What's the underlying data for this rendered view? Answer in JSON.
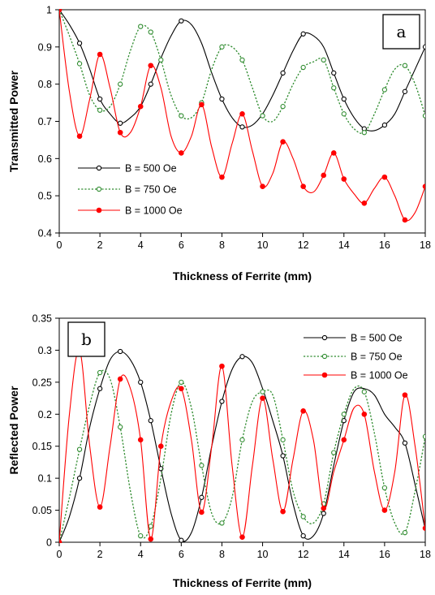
{
  "chart_data": [
    {
      "type": "line",
      "panel_label": "a",
      "xlabel": "Thickness of Ferrite (mm)",
      "ylabel": "Transmitted Power",
      "xlim": [
        0,
        18
      ],
      "ylim": [
        0.4,
        1.0
      ],
      "xticks": [
        "0",
        "2",
        "4",
        "6",
        "8",
        "10",
        "12",
        "14",
        "16",
        "18"
      ],
      "yticks": [
        "0.4",
        "0.5",
        "0.6",
        "0.7",
        "0.8",
        "0.9",
        "1"
      ],
      "legend_position": "lower-left",
      "grid": false,
      "series": [
        {
          "name": "B = 500 Oe",
          "color": "#000000",
          "line_style": "solid",
          "marker": "open-circle",
          "x": [
            0,
            0.5,
            1,
            1.5,
            2,
            2.5,
            3,
            3.5,
            4,
            4.5,
            5,
            5.5,
            6,
            6.5,
            7,
            7.5,
            8,
            8.5,
            9,
            9.5,
            10,
            10.5,
            11,
            11.5,
            12,
            12.5,
            13,
            13.5,
            14,
            14.5,
            15,
            15.5,
            16,
            16.5,
            17,
            17.5,
            18
          ],
          "y": [
            1.0,
            0.96,
            0.91,
            0.84,
            0.76,
            0.72,
            0.695,
            0.71,
            0.74,
            0.8,
            0.87,
            0.93,
            0.97,
            0.96,
            0.91,
            0.83,
            0.76,
            0.71,
            0.685,
            0.69,
            0.72,
            0.77,
            0.83,
            0.89,
            0.935,
            0.93,
            0.9,
            0.83,
            0.76,
            0.71,
            0.68,
            0.675,
            0.69,
            0.72,
            0.78,
            0.84,
            0.9
          ],
          "markers_x": [
            0,
            1,
            2,
            3,
            4.5,
            6,
            8,
            9,
            11,
            12,
            13.5,
            14,
            15,
            16,
            17,
            18
          ]
        },
        {
          "name": "B = 750 Oe",
          "color": "#2e8b2e",
          "line_style": "dotted",
          "marker": "open-circle",
          "x": [
            0,
            0.5,
            1,
            1.5,
            2,
            2.5,
            3,
            3.5,
            4,
            4.5,
            5,
            5.5,
            6,
            6.5,
            7,
            7.5,
            8,
            8.5,
            9,
            9.5,
            10,
            10.5,
            11,
            11.5,
            12,
            12.5,
            13,
            13.5,
            14,
            14.5,
            15,
            15.5,
            16,
            16.5,
            17,
            17.5,
            18
          ],
          "y": [
            1.0,
            0.93,
            0.855,
            0.77,
            0.73,
            0.74,
            0.8,
            0.89,
            0.955,
            0.94,
            0.865,
            0.77,
            0.715,
            0.71,
            0.75,
            0.84,
            0.9,
            0.9,
            0.865,
            0.79,
            0.715,
            0.7,
            0.74,
            0.8,
            0.845,
            0.86,
            0.865,
            0.79,
            0.72,
            0.68,
            0.67,
            0.72,
            0.785,
            0.84,
            0.85,
            0.8,
            0.715
          ],
          "markers_x": [
            0,
            1,
            2,
            3,
            4,
            4.5,
            5,
            6,
            7,
            8,
            9,
            10,
            11,
            12,
            13,
            13.5,
            14,
            15,
            16,
            17,
            18
          ]
        },
        {
          "name": "B = 1000 Oe",
          "color": "#ff0000",
          "line_style": "solid",
          "marker": "filled-circle",
          "x": [
            0,
            0.5,
            1,
            1.5,
            2,
            2.5,
            3,
            3.5,
            4,
            4.5,
            5,
            5.5,
            6,
            6.5,
            7,
            7.5,
            8,
            8.5,
            9,
            9.5,
            10,
            10.5,
            11,
            11.5,
            12,
            12.5,
            13,
            13.5,
            14,
            14.5,
            15,
            15.5,
            16,
            16.5,
            17,
            17.5,
            18
          ],
          "y": [
            1.0,
            0.78,
            0.66,
            0.76,
            0.88,
            0.79,
            0.67,
            0.67,
            0.74,
            0.85,
            0.79,
            0.66,
            0.615,
            0.66,
            0.745,
            0.63,
            0.55,
            0.64,
            0.72,
            0.62,
            0.525,
            0.56,
            0.645,
            0.6,
            0.525,
            0.51,
            0.555,
            0.615,
            0.545,
            0.505,
            0.48,
            0.52,
            0.55,
            0.5,
            0.435,
            0.455,
            0.525
          ],
          "markers_x": [
            0,
            1,
            2,
            3,
            4,
            4.5,
            6,
            7,
            8,
            9,
            10,
            11,
            12,
            13,
            13.5,
            14,
            15,
            16,
            17,
            18
          ]
        }
      ]
    },
    {
      "type": "line",
      "panel_label": "b",
      "xlabel": "Thickness of Ferrite (mm)",
      "ylabel": "Reflected Power",
      "xlim": [
        0,
        18
      ],
      "ylim": [
        0,
        0.35
      ],
      "xticks": [
        "0",
        "2",
        "4",
        "6",
        "8",
        "10",
        "12",
        "14",
        "16",
        "18"
      ],
      "yticks": [
        "0",
        "0.05",
        "0.1",
        "0.15",
        "0.2",
        "0.25",
        "0.3",
        "0.35"
      ],
      "legend_position": "top-right",
      "grid": false,
      "series": [
        {
          "name": "B = 500 Oe",
          "color": "#000000",
          "line_style": "solid",
          "marker": "open-circle",
          "x": [
            0,
            0.5,
            1,
            1.5,
            2,
            2.5,
            3,
            3.5,
            4,
            4.5,
            5,
            5.5,
            6,
            6.5,
            7,
            7.5,
            8,
            8.5,
            9,
            9.5,
            10,
            10.5,
            11,
            11.5,
            12,
            12.5,
            13,
            13.5,
            14,
            14.5,
            15,
            15.5,
            16,
            16.5,
            17,
            17.5,
            18
          ],
          "y": [
            0.0,
            0.04,
            0.1,
            0.18,
            0.24,
            0.285,
            0.298,
            0.285,
            0.25,
            0.19,
            0.115,
            0.045,
            0.003,
            0.015,
            0.07,
            0.15,
            0.22,
            0.27,
            0.29,
            0.28,
            0.24,
            0.19,
            0.135,
            0.06,
            0.01,
            0.01,
            0.045,
            0.12,
            0.19,
            0.235,
            0.24,
            0.23,
            0.2,
            0.18,
            0.155,
            0.09,
            0.02
          ],
          "markers_x": [
            0,
            1,
            2,
            3,
            4,
            4.5,
            5,
            6,
            7,
            8,
            9,
            11,
            12,
            13,
            14,
            17
          ]
        },
        {
          "name": "B = 750 Oe",
          "color": "#2e8b2e",
          "line_style": "dotted",
          "marker": "open-circle",
          "x": [
            0,
            0.5,
            1,
            1.5,
            2,
            2.5,
            3,
            3.5,
            4,
            4.5,
            5,
            5.5,
            6,
            6.5,
            7,
            7.5,
            8,
            8.5,
            9,
            9.5,
            10,
            10.5,
            11,
            11.5,
            12,
            12.5,
            13,
            13.5,
            14,
            14.5,
            15,
            15.5,
            16,
            16.5,
            17,
            17.5,
            18
          ],
          "y": [
            0.0,
            0.07,
            0.145,
            0.215,
            0.265,
            0.255,
            0.18,
            0.08,
            0.01,
            0.025,
            0.1,
            0.2,
            0.25,
            0.21,
            0.12,
            0.045,
            0.03,
            0.07,
            0.16,
            0.22,
            0.235,
            0.23,
            0.16,
            0.08,
            0.04,
            0.03,
            0.06,
            0.14,
            0.2,
            0.24,
            0.235,
            0.17,
            0.085,
            0.03,
            0.015,
            0.08,
            0.165
          ],
          "markers_x": [
            0,
            1,
            2,
            3,
            4,
            4.5,
            6,
            7,
            8,
            9,
            10,
            11,
            12,
            13,
            13.5,
            14,
            15,
            16,
            17,
            18
          ]
        },
        {
          "name": "B = 1000 Oe",
          "color": "#ff0000",
          "line_style": "solid",
          "marker": "filled-circle",
          "x": [
            0,
            0.5,
            1,
            1.5,
            2,
            2.5,
            3,
            3.5,
            4,
            4.5,
            5,
            5.5,
            6,
            6.5,
            7,
            7.5,
            8,
            8.5,
            9,
            9.5,
            10,
            10.5,
            11,
            11.5,
            12,
            12.5,
            13,
            13.5,
            14,
            14.5,
            15,
            15.5,
            16,
            16.5,
            17,
            17.5,
            18
          ],
          "y": [
            0.0,
            0.2,
            0.3,
            0.15,
            0.055,
            0.15,
            0.255,
            0.24,
            0.16,
            0.005,
            0.15,
            0.22,
            0.24,
            0.16,
            0.047,
            0.15,
            0.275,
            0.12,
            0.008,
            0.12,
            0.225,
            0.13,
            0.048,
            0.13,
            0.205,
            0.16,
            0.053,
            0.11,
            0.16,
            0.21,
            0.2,
            0.11,
            0.05,
            0.11,
            0.23,
            0.15,
            0.022
          ],
          "markers_x": [
            0,
            1,
            2,
            3,
            4,
            4.5,
            5,
            6,
            7,
            8,
            9,
            10,
            11,
            12,
            13,
            14,
            15,
            16,
            17,
            18
          ]
        }
      ]
    }
  ]
}
